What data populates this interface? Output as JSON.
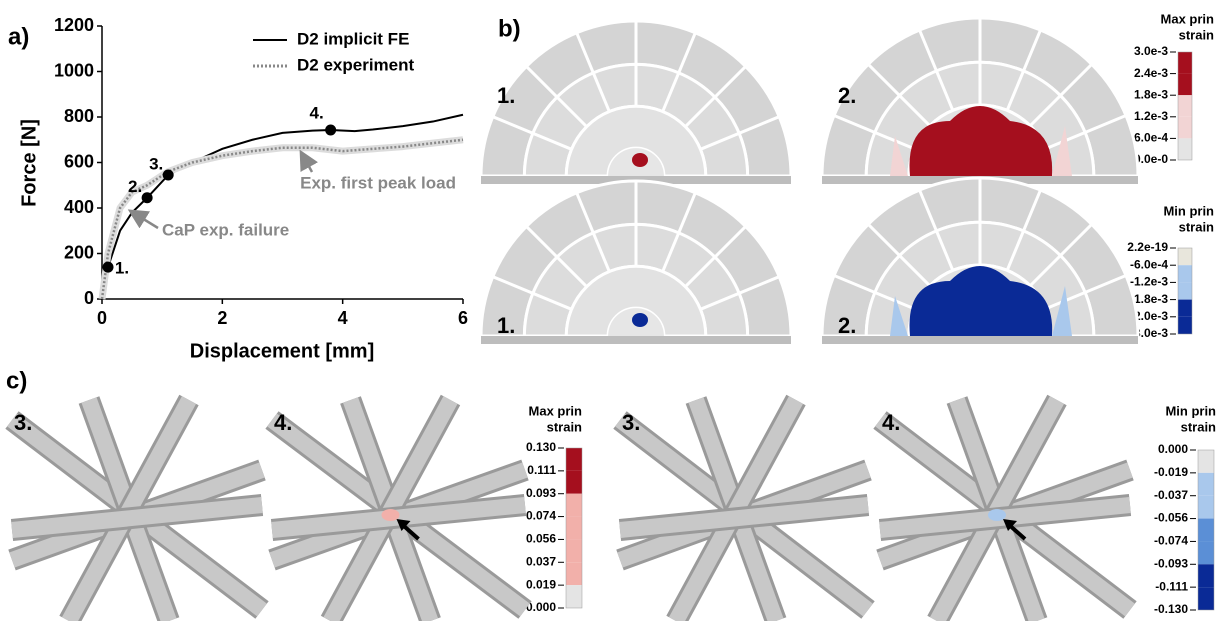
{
  "chart_data": {
    "type": "line",
    "panel_label": "a)",
    "x_label": "Displacement [mm]",
    "y_label": "Force [N]",
    "xlim": [
      0,
      6
    ],
    "xticks": [
      0,
      2,
      4,
      6
    ],
    "ylim": [
      0,
      1200
    ],
    "yticks": [
      0,
      200,
      400,
      600,
      800,
      1000,
      1200
    ],
    "legend": "upper right",
    "series": [
      {
        "name": "D2 implicit FE",
        "color": "#000000",
        "line_style": "solid",
        "x": [
          0,
          0.1,
          0.3,
          0.5,
          0.75,
          1.1,
          1.5,
          2,
          2.5,
          3,
          3.5,
          3.8,
          4.2,
          4.5,
          5,
          5.5,
          6
        ],
        "values": [
          0,
          140,
          300,
          380,
          445,
          545,
          600,
          660,
          700,
          730,
          740,
          743,
          738,
          745,
          760,
          780,
          810
        ]
      },
      {
        "name": "D2 experiment",
        "color": "#888888",
        "line_style": "dotted",
        "x": [
          0,
          0.1,
          0.3,
          0.5,
          0.75,
          1.1,
          1.5,
          2,
          2.5,
          3,
          3.5,
          4,
          4.5,
          5,
          5.5,
          6
        ],
        "values": [
          0,
          200,
          400,
          470,
          500,
          560,
          600,
          630,
          650,
          665,
          665,
          650,
          660,
          670,
          685,
          700
        ]
      }
    ],
    "markers": {
      "x": [
        0.1,
        0.75,
        1.1,
        3.8
      ],
      "y": [
        140,
        445,
        545,
        743
      ],
      "labels": [
        "1.",
        "2.",
        "3.",
        "4."
      ]
    },
    "annotations": [
      "CaP exp. failure",
      "Exp. first peak load"
    ]
  },
  "panel_b": {
    "label": "b)",
    "image_labels": [
      "1.",
      "2.",
      "1.",
      "2."
    ],
    "colorbars": [
      {
        "title": [
          "Max prin",
          "strain"
        ],
        "labels": [
          "3.0e-3",
          "2.4e-3",
          "1.8e-3",
          "1.2e-3",
          "6.0e-4",
          "0.0e-0"
        ],
        "colors": [
          "#a50f1e",
          "#a50f1e",
          "#f2d4d4",
          "#f2d4d4",
          "#e4e4e4"
        ]
      },
      {
        "title": [
          "Min prin",
          "strain"
        ],
        "labels": [
          "2.2e-19",
          "-6.0e-4",
          "-1.2e-3",
          "-1.8e-3",
          "-2.0e-3",
          "-3.0e-3"
        ],
        "colors": [
          "#e8e6dc",
          "#a9c8ec",
          "#a9c8ec",
          "#0a2a96",
          "#0a2a96"
        ]
      }
    ]
  },
  "panel_c": {
    "label": "c)",
    "image_labels": [
      "3.",
      "4.",
      "3.",
      "4."
    ],
    "colorbars": [
      {
        "title": [
          "Max prin",
          "strain"
        ],
        "labels": [
          "0.130",
          "0.111",
          "0.093",
          "0.074",
          "0.056",
          "0.037",
          "0.019",
          "0.000"
        ],
        "colors": [
          "#a50f1e",
          "#a50f1e",
          "#f2b0aa",
          "#f2b0aa",
          "#f2b0aa",
          "#f2b0aa",
          "#e4e4e4"
        ]
      },
      {
        "title": [
          "Min prin",
          "strain"
        ],
        "labels": [
          "0.000",
          "-0.019",
          "-0.037",
          "-0.056",
          "-0.074",
          "-0.093",
          "-0.111",
          "-0.130"
        ],
        "colors": [
          "#e4e4e4",
          "#a9c8ec",
          "#a9c8ec",
          "#5b8fd6",
          "#5b8fd6",
          "#0a2a96",
          "#0a2a96"
        ]
      }
    ]
  }
}
